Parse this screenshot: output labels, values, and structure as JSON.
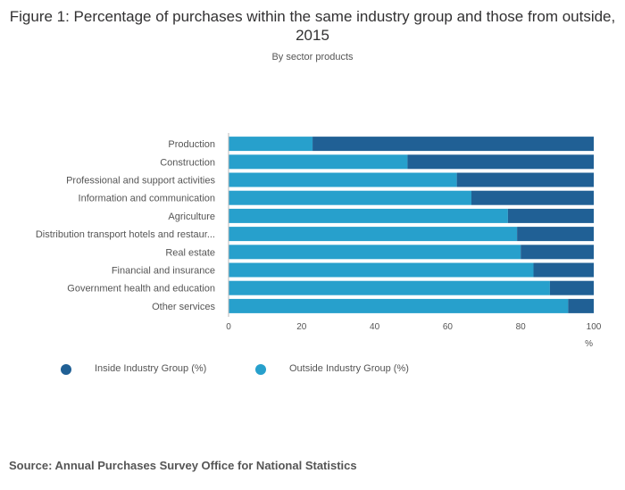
{
  "title": "Figure 1: Percentage of purchases within the same industry group and those from outside, 2015",
  "subtitle": "By sector products",
  "source": "Source: Annual Purchases Survey Office for National Statistics",
  "colors": {
    "outside": "#27a0cc",
    "inside": "#206095",
    "axis": "#bbbbbb",
    "text": "#555555"
  },
  "chart_data": {
    "type": "bar",
    "orientation": "horizontal",
    "stacked": true,
    "categories": [
      "Production",
      "Construction",
      "Professional and support activities",
      "Information and communication",
      "Agriculture",
      "Distribution transport hotels and restaur...",
      "Real estate",
      "Financial and insurance",
      "Government health and education",
      "Other services"
    ],
    "series": [
      {
        "name": "Outside Industry Group (%)",
        "values": [
          23,
          49,
          62.5,
          66.5,
          76.5,
          79,
          80,
          83.5,
          88,
          93
        ]
      },
      {
        "name": "Inside Industry Group (%)",
        "values": [
          77,
          51,
          37.5,
          33.5,
          23.5,
          21,
          20,
          16.5,
          12,
          7
        ]
      }
    ],
    "xticks": [
      "0",
      "20",
      "40",
      "60",
      "80",
      "100"
    ],
    "xlim": [
      0,
      100
    ],
    "xlabel": "%",
    "grid": false,
    "legend": {
      "position": "bottom-left",
      "items": [
        "Inside Industry Group (%)",
        "Outside Industry Group (%)"
      ]
    }
  }
}
